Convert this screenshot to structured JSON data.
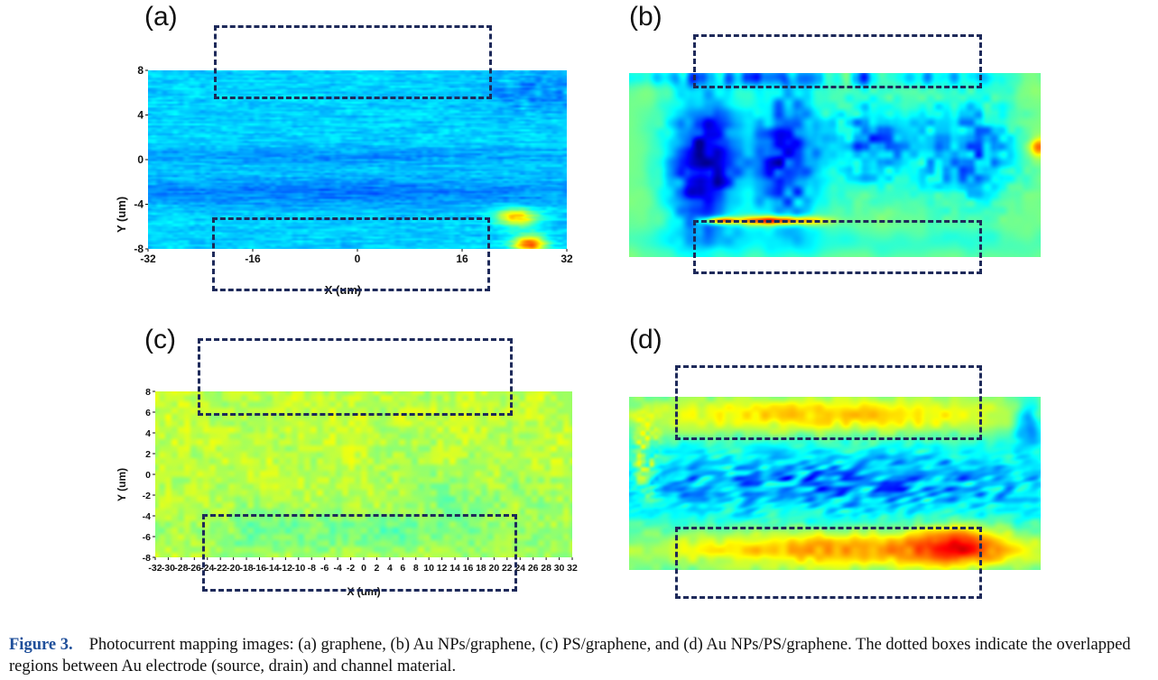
{
  "panels": {
    "a": {
      "label": "(a)",
      "yaxis_title": "Y (um)",
      "xaxis_title": "X (um)",
      "yticks": [
        "8",
        "4",
        "0",
        "-4",
        "-8"
      ],
      "xticks": [
        "-32",
        "-16",
        "0",
        "16",
        "32"
      ]
    },
    "b": {
      "label": "(b)"
    },
    "c": {
      "label": "(c)",
      "yaxis_title": "Y (um)",
      "xaxis_title": "X (um)",
      "yticks": [
        "8",
        "6",
        "4",
        "2",
        "0",
        "-2",
        "-4",
        "-6",
        "-8"
      ],
      "xticks": [
        "-32",
        "-30",
        "-28",
        "-26",
        "-24",
        "-22",
        "-20",
        "-18",
        "-16",
        "-14",
        "-12",
        "-10",
        "-8",
        "-6",
        "-4",
        "-2",
        "0",
        "2",
        "4",
        "6",
        "8",
        "10",
        "12",
        "14",
        "16",
        "18",
        "20",
        "22",
        "24",
        "26",
        "28",
        "30",
        "32"
      ]
    },
    "d": {
      "label": "(d)"
    }
  },
  "colors": {
    "jet": [
      "#00008f",
      "#0000ff",
      "#0080ff",
      "#00ffff",
      "#80ff80",
      "#ffff00",
      "#ff8000",
      "#ff0000",
      "#800000"
    ],
    "box_border": "#1e2a5a",
    "caption_figure": "#1f4f9a"
  },
  "caption": {
    "figure_label": "Figure 3.",
    "text": "Photocurrent mapping images: (a) graphene, (b) Au NPs/graphene, (c) PS/graphene, and (d) Au NPs/PS/graphene. The dotted boxes indicate the overlapped regions between Au electrode (source, drain) and channel material."
  }
}
